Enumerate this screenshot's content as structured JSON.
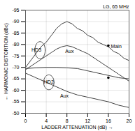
{
  "chart_data": {
    "type": "line",
    "title": "LG, 65 MHz",
    "xlabel": "LADDER ATTENUATION (dB)",
    "ylabel": "HARMONIC DISTORTION (dBc)",
    "xlim": [
      0,
      20
    ],
    "ylim": [
      -50,
      -95
    ],
    "xticks": [
      0,
      4,
      8,
      12,
      16,
      20
    ],
    "yticks": [
      -95,
      -90,
      -85,
      -80,
      -75,
      -70,
      -65,
      -60,
      -55,
      -50
    ],
    "grid": true,
    "series": [
      {
        "x": [
          0,
          1,
          2,
          3,
          4,
          5,
          6,
          7,
          8,
          9,
          10,
          11,
          12,
          13,
          14,
          15,
          16,
          17,
          18,
          19,
          20
        ],
        "values": [
          -70,
          -73,
          -76,
          -79,
          -81,
          -84,
          -87,
          -89,
          -90,
          -89,
          -87,
          -86,
          -84,
          -83,
          -81,
          -80,
          -79,
          -77,
          -76,
          -74,
          -73
        ],
        "color": "#404040"
      },
      {
        "x": [
          0,
          1,
          2,
          3,
          4,
          5,
          6,
          7,
          8,
          9,
          10,
          11,
          12,
          13,
          14,
          15,
          16,
          17,
          18,
          19,
          20
        ],
        "values": [
          -69,
          -70.5,
          -72,
          -73.5,
          -75,
          -76.5,
          -78,
          -79,
          -79.5,
          -79,
          -78,
          -77,
          -76,
          -74.5,
          -73,
          -71.5,
          -70,
          -68.5,
          -67,
          -65.5,
          -64
        ],
        "color": "#404040"
      },
      {
        "x": [
          0,
          2,
          4,
          6,
          8,
          10,
          12,
          14,
          16,
          18,
          20
        ],
        "values": [
          -69.5,
          -69.8,
          -70.0,
          -70.0,
          -69.8,
          -69.5,
          -68.5,
          -67.5,
          -66.5,
          -65.5,
          -65.0
        ],
        "color": "#404040"
      },
      {
        "x": [
          0,
          2,
          4,
          6,
          8,
          10,
          12,
          14,
          16,
          18,
          20
        ],
        "values": [
          -67.5,
          -65.5,
          -63.5,
          -61.5,
          -59.5,
          -58.0,
          -57.0,
          -56.0,
          -55.0,
          -53.5,
          -52.5
        ],
        "color": "#404040"
      }
    ],
    "ellipses": [
      {
        "cx": 2.8,
        "cy": -77.5,
        "width": 2.0,
        "height": 7.5,
        "color": "#404040"
      },
      {
        "cx": 4.5,
        "cy": -63.5,
        "width": 2.0,
        "height": 6.5,
        "color": "#404040"
      }
    ],
    "points": [
      {
        "x": 16,
        "y": -79.5,
        "color": "#000000"
      },
      {
        "x": 16,
        "y": -65.5,
        "color": "#000000"
      }
    ],
    "annotations": [
      {
        "text": "HD3",
        "x": 2.1,
        "y": -77.5
      },
      {
        "text": "HD2",
        "x": 4.5,
        "y": -63.5
      },
      {
        "text": "Aux",
        "x": 8.5,
        "y": -77.0
      },
      {
        "text": "Aux",
        "x": 7.5,
        "y": -57.5
      },
      {
        "text": "Main",
        "x": 16.5,
        "y": -79.0,
        "align": "left"
      }
    ]
  }
}
